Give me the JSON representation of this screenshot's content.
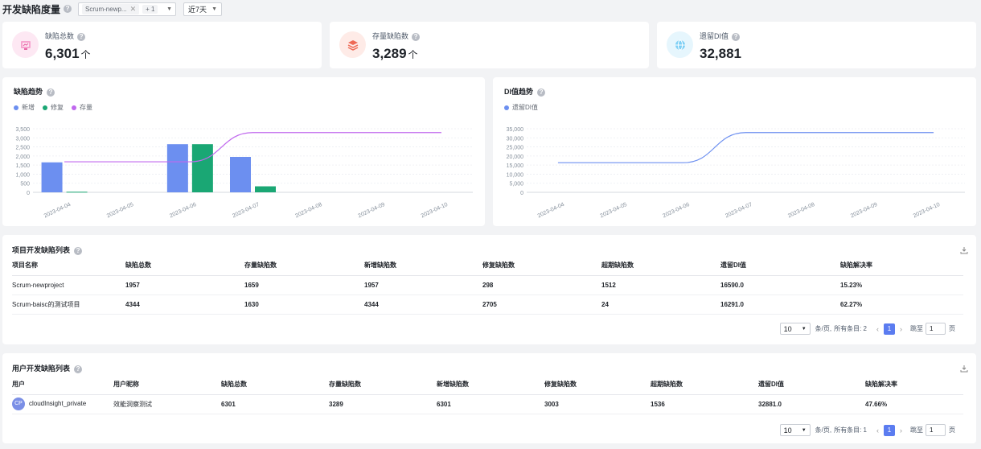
{
  "header": {
    "title": "开发缺陷度量",
    "project_tag": "Scrum-newp...",
    "project_more": "+ 1",
    "range": "近7天"
  },
  "kpis": [
    {
      "label": "缺陷总数",
      "value": "6,301",
      "unit": "个",
      "icon": "bug-icon",
      "icon_bg": "#fde8f3",
      "icon_color": "#e86aa8"
    },
    {
      "label": "存量缺陷数",
      "value": "3,289",
      "unit": "个",
      "icon": "stack-icon",
      "icon_bg": "#feebe7",
      "icon_color": "#ee6a55"
    },
    {
      "label": "遗留DI值",
      "value": "32,881",
      "unit": "",
      "icon": "globe-icon",
      "icon_bg": "#e6f6fd",
      "icon_color": "#3fb6ee"
    }
  ],
  "colors": {
    "new": "#6c8ff0",
    "fixed": "#1aa774",
    "stock": "#c068ee",
    "di": "#6c8ff0",
    "accent": "#5b7cf0"
  },
  "defect_chart": {
    "title": "缺陷趋势",
    "legend": [
      "新增",
      "修复",
      "存量"
    ]
  },
  "di_chart": {
    "title": "DI值趋势",
    "legend": [
      "遗留DI值"
    ]
  },
  "chart_data": [
    {
      "type": "bar",
      "title": "缺陷趋势",
      "categories": [
        "2023-04-04",
        "2023-04-05",
        "2023-04-06",
        "2023-04-07",
        "2023-04-08",
        "2023-04-09",
        "2023-04-10"
      ],
      "series": [
        {
          "name": "新增",
          "type": "bar",
          "values": [
            1650,
            0,
            2650,
            1950,
            0,
            0,
            0
          ]
        },
        {
          "name": "修复",
          "type": "bar",
          "values": [
            30,
            0,
            2650,
            330,
            0,
            0,
            0
          ]
        },
        {
          "name": "存量",
          "type": "line",
          "values": [
            1680,
            1680,
            1680,
            3289,
            3289,
            3289,
            3289
          ]
        }
      ],
      "ylim": [
        0,
        3500
      ],
      "yticks": [
        "0",
        "500",
        "1,000",
        "1,500",
        "2,000",
        "2,500",
        "3,000",
        "3,500"
      ],
      "legend_position": "top-left"
    },
    {
      "type": "line",
      "title": "DI值趋势",
      "categories": [
        "2023-04-04",
        "2023-04-05",
        "2023-04-06",
        "2023-04-07",
        "2023-04-08",
        "2023-04-09",
        "2023-04-10"
      ],
      "series": [
        {
          "name": "遗留DI值",
          "values": [
            16300,
            16300,
            16300,
            32881,
            32881,
            32881,
            32881
          ]
        }
      ],
      "ylim": [
        0,
        35000
      ],
      "yticks": [
        "0",
        "5,000",
        "10,000",
        "15,000",
        "20,000",
        "25,000",
        "30,000",
        "35,000"
      ],
      "legend_position": "top-left"
    }
  ],
  "project_table": {
    "title": "项目开发缺陷列表",
    "columns": [
      "项目名称",
      "缺陷总数",
      "存量缺陷数",
      "新增缺陷数",
      "修复缺陷数",
      "超期缺陷数",
      "遗留DI值",
      "缺陷解决率"
    ],
    "rows": [
      [
        "Scrum-newproject",
        "1957",
        "1659",
        "1957",
        "298",
        "1512",
        "16590.0",
        "15.23%"
      ],
      [
        "Scrum-baisc的测试项目",
        "4344",
        "1630",
        "4344",
        "2705",
        "24",
        "16291.0",
        "62.27%"
      ]
    ],
    "pager": {
      "size": "10",
      "per_page": "条/页,",
      "total": "所有条目: 2",
      "page": "1",
      "goto": "跳至",
      "goto_value": "1",
      "unit": "页"
    }
  },
  "user_table": {
    "title": "用户开发缺陷列表",
    "columns": [
      "用户",
      "用户昵称",
      "缺陷总数",
      "存量缺陷数",
      "新增缺陷数",
      "修复缺陷数",
      "超期缺陷数",
      "遗留DI值",
      "缺陷解决率"
    ],
    "rows": [
      {
        "avatar": "CP",
        "user": "cloudInsight_private",
        "nick": "效能洞察测试",
        "vals": [
          "6301",
          "3289",
          "6301",
          "3003",
          "1536",
          "32881.0",
          "47.66%"
        ]
      }
    ],
    "pager": {
      "size": "10",
      "per_page": "条/页,",
      "total": "所有条目: 1",
      "page": "1",
      "goto": "跳至",
      "goto_value": "1",
      "unit": "页"
    }
  }
}
